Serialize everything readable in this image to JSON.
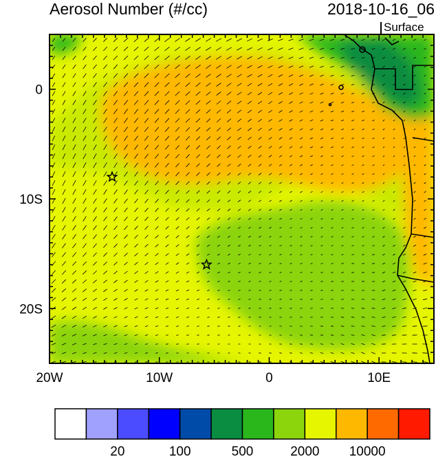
{
  "header": {
    "title": "Aerosol Number (#/cc)",
    "timestamp": "2018-10-16_06",
    "level": "Surface"
  },
  "map": {
    "lon_range": [
      -20,
      15
    ],
    "lat_range": [
      -25,
      5
    ],
    "lon_ticks": [
      {
        "value": -20,
        "label": "20W"
      },
      {
        "value": -10,
        "label": "10W"
      },
      {
        "value": 0,
        "label": "0"
      },
      {
        "value": 10,
        "label": "10E"
      }
    ],
    "lat_ticks": [
      {
        "value": 0,
        "label": "0"
      },
      {
        "value": -10,
        "label": "10S"
      },
      {
        "value": -20,
        "label": "20S"
      }
    ],
    "markers": [
      {
        "name": "star-marker-west",
        "lon": -14.3,
        "lat": -8.0
      },
      {
        "name": "star-marker-south",
        "lon": -5.7,
        "lat": -16.0
      }
    ]
  },
  "colorbar": {
    "colors": [
      "#ffffff",
      "#a0a0ff",
      "#4b4bff",
      "#0000ff",
      "#004ba8",
      "#0a8c41",
      "#2ab71c",
      "#8cd40c",
      "#e6f500",
      "#ffb800",
      "#ff6a00",
      "#ff1a00"
    ],
    "labels": [
      {
        "after_box": 2,
        "text": "20"
      },
      {
        "after_box": 4,
        "text": "100"
      },
      {
        "after_box": 6,
        "text": "500"
      },
      {
        "after_box": 8,
        "text": "2000"
      },
      {
        "after_box": 10,
        "text": "10000"
      }
    ]
  }
}
